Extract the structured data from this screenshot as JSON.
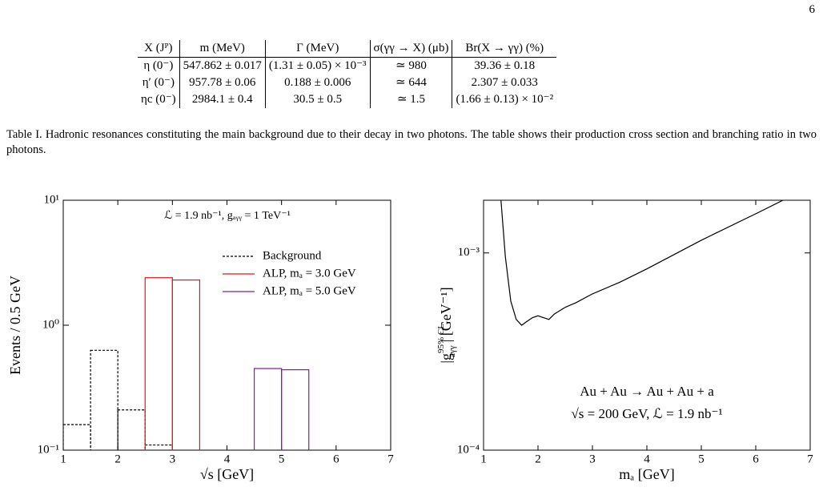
{
  "page_number": "6",
  "table": {
    "header": [
      "X (Jᴾ)",
      "m (MeV)",
      "Γ (MeV)",
      "σ(γγ → X) (μb)",
      "Br(X → γγ) (%)"
    ],
    "rows": [
      [
        "η (0⁻)",
        "547.862 ± 0.017",
        "(1.31 ± 0.05) × 10⁻³",
        "≃ 980",
        "39.36 ± 0.18"
      ],
      [
        "η′ (0⁻)",
        "957.78 ± 0.06",
        "0.188 ± 0.006",
        "≃ 644",
        "2.307 ± 0.033"
      ],
      [
        "ηc (0⁻)",
        "2984.1 ± 0.4",
        "30.5 ± 0.5",
        "≃ 1.5",
        "(1.66 ± 0.13) × 10⁻²"
      ]
    ],
    "caption": "Table I. Hadronic resonances constituting the main background due to their decay in two photons. The table shows their production cross section and branching ratio in two photons."
  },
  "chart_data": [
    {
      "type": "histogram",
      "annotation": "ℒ = 1.9 nb⁻¹, gₐᵧᵧ = 1 TeV⁻¹",
      "x_label": "√s [GeV]",
      "y_label": "Events / 0.5 GeV",
      "xlim": [
        1,
        7
      ],
      "xticks": [
        1,
        2,
        3,
        4,
        5,
        6,
        7
      ],
      "ylim": [
        0.1,
        10
      ],
      "y_log": true,
      "yticks": [
        {
          "value": 0.1,
          "label": "10⁻¹"
        },
        {
          "value": 1,
          "label": "10⁰"
        },
        {
          "value": 10,
          "label": "10¹"
        }
      ],
      "legend": "upper right",
      "series": [
        {
          "name": "Background",
          "color": "#000000",
          "dashed": true,
          "bins": [
            1,
            1.5,
            2,
            2.5,
            3
          ],
          "values": [
            0.16,
            0.63,
            0.21,
            0.11
          ]
        },
        {
          "name": "ALP, mₐ = 3.0 GeV",
          "color": "#e8141c",
          "bins": [
            2.5,
            3,
            3.5
          ],
          "values": [
            2.4,
            2.3
          ]
        },
        {
          "name": "ALP, mₐ = 5.0 GeV",
          "color": "#8b1a9b",
          "bins": [
            4.5,
            5,
            5.5
          ],
          "values": [
            0.45,
            0.44
          ]
        }
      ]
    },
    {
      "type": "line",
      "annotations": [
        "Au + Au → Au + Au + a",
        "√s = 200 GeV, ℒ = 1.9 nb⁻¹"
      ],
      "x_label": "mₐ [GeV]",
      "y_label": {
        "open": "|g",
        "sup": "95% CL",
        "sub": "aγγ",
        "close": "| [GeV⁻¹]"
      },
      "xlim": [
        1,
        7
      ],
      "xticks": [
        1,
        2,
        3,
        4,
        5,
        6,
        7
      ],
      "ylim": [
        0.0001,
        0.00185
      ],
      "y_log": true,
      "yticks": [
        {
          "value": 0.0001,
          "label": "10⁻⁴"
        },
        {
          "value": 0.001,
          "label": "10⁻³"
        }
      ],
      "series": [
        {
          "color": "#000000",
          "x": [
            1.32,
            1.4,
            1.5,
            1.6,
            1.7,
            1.8,
            1.9,
            2.0,
            2.1,
            2.2,
            2.3,
            2.5,
            2.7,
            3.0,
            3.5,
            4.0,
            5.0,
            6.0,
            6.5
          ],
          "values": [
            0.00185,
            0.00096,
            0.00057,
            0.00046,
            0.00043,
            0.00045,
            0.00047,
            0.00048,
            0.00047,
            0.00046,
            0.00049,
            0.00053,
            0.00056,
            0.00062,
            0.00071,
            0.00083,
            0.00116,
            0.00158,
            0.00185
          ]
        }
      ]
    }
  ]
}
